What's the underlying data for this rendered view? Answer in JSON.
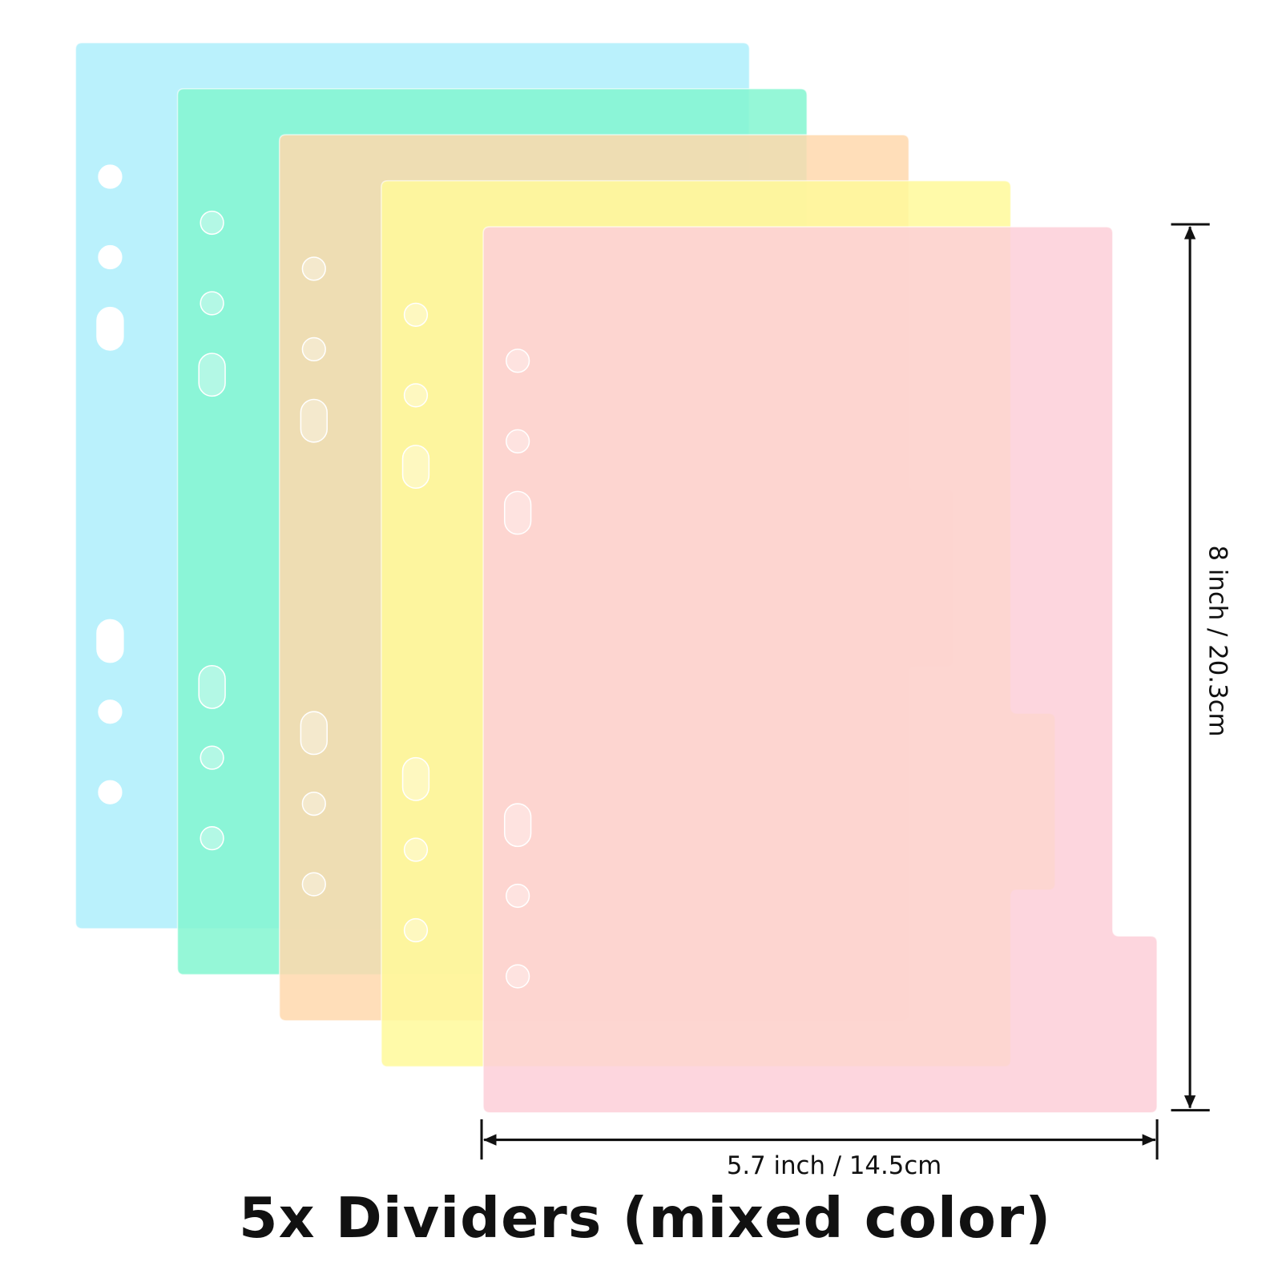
{
  "dimensions": {
    "height": "8 inch / 20.3cm",
    "width": "5.7 inch / 14.5cm"
  },
  "caption": "5x Dividers (mixed color)"
}
